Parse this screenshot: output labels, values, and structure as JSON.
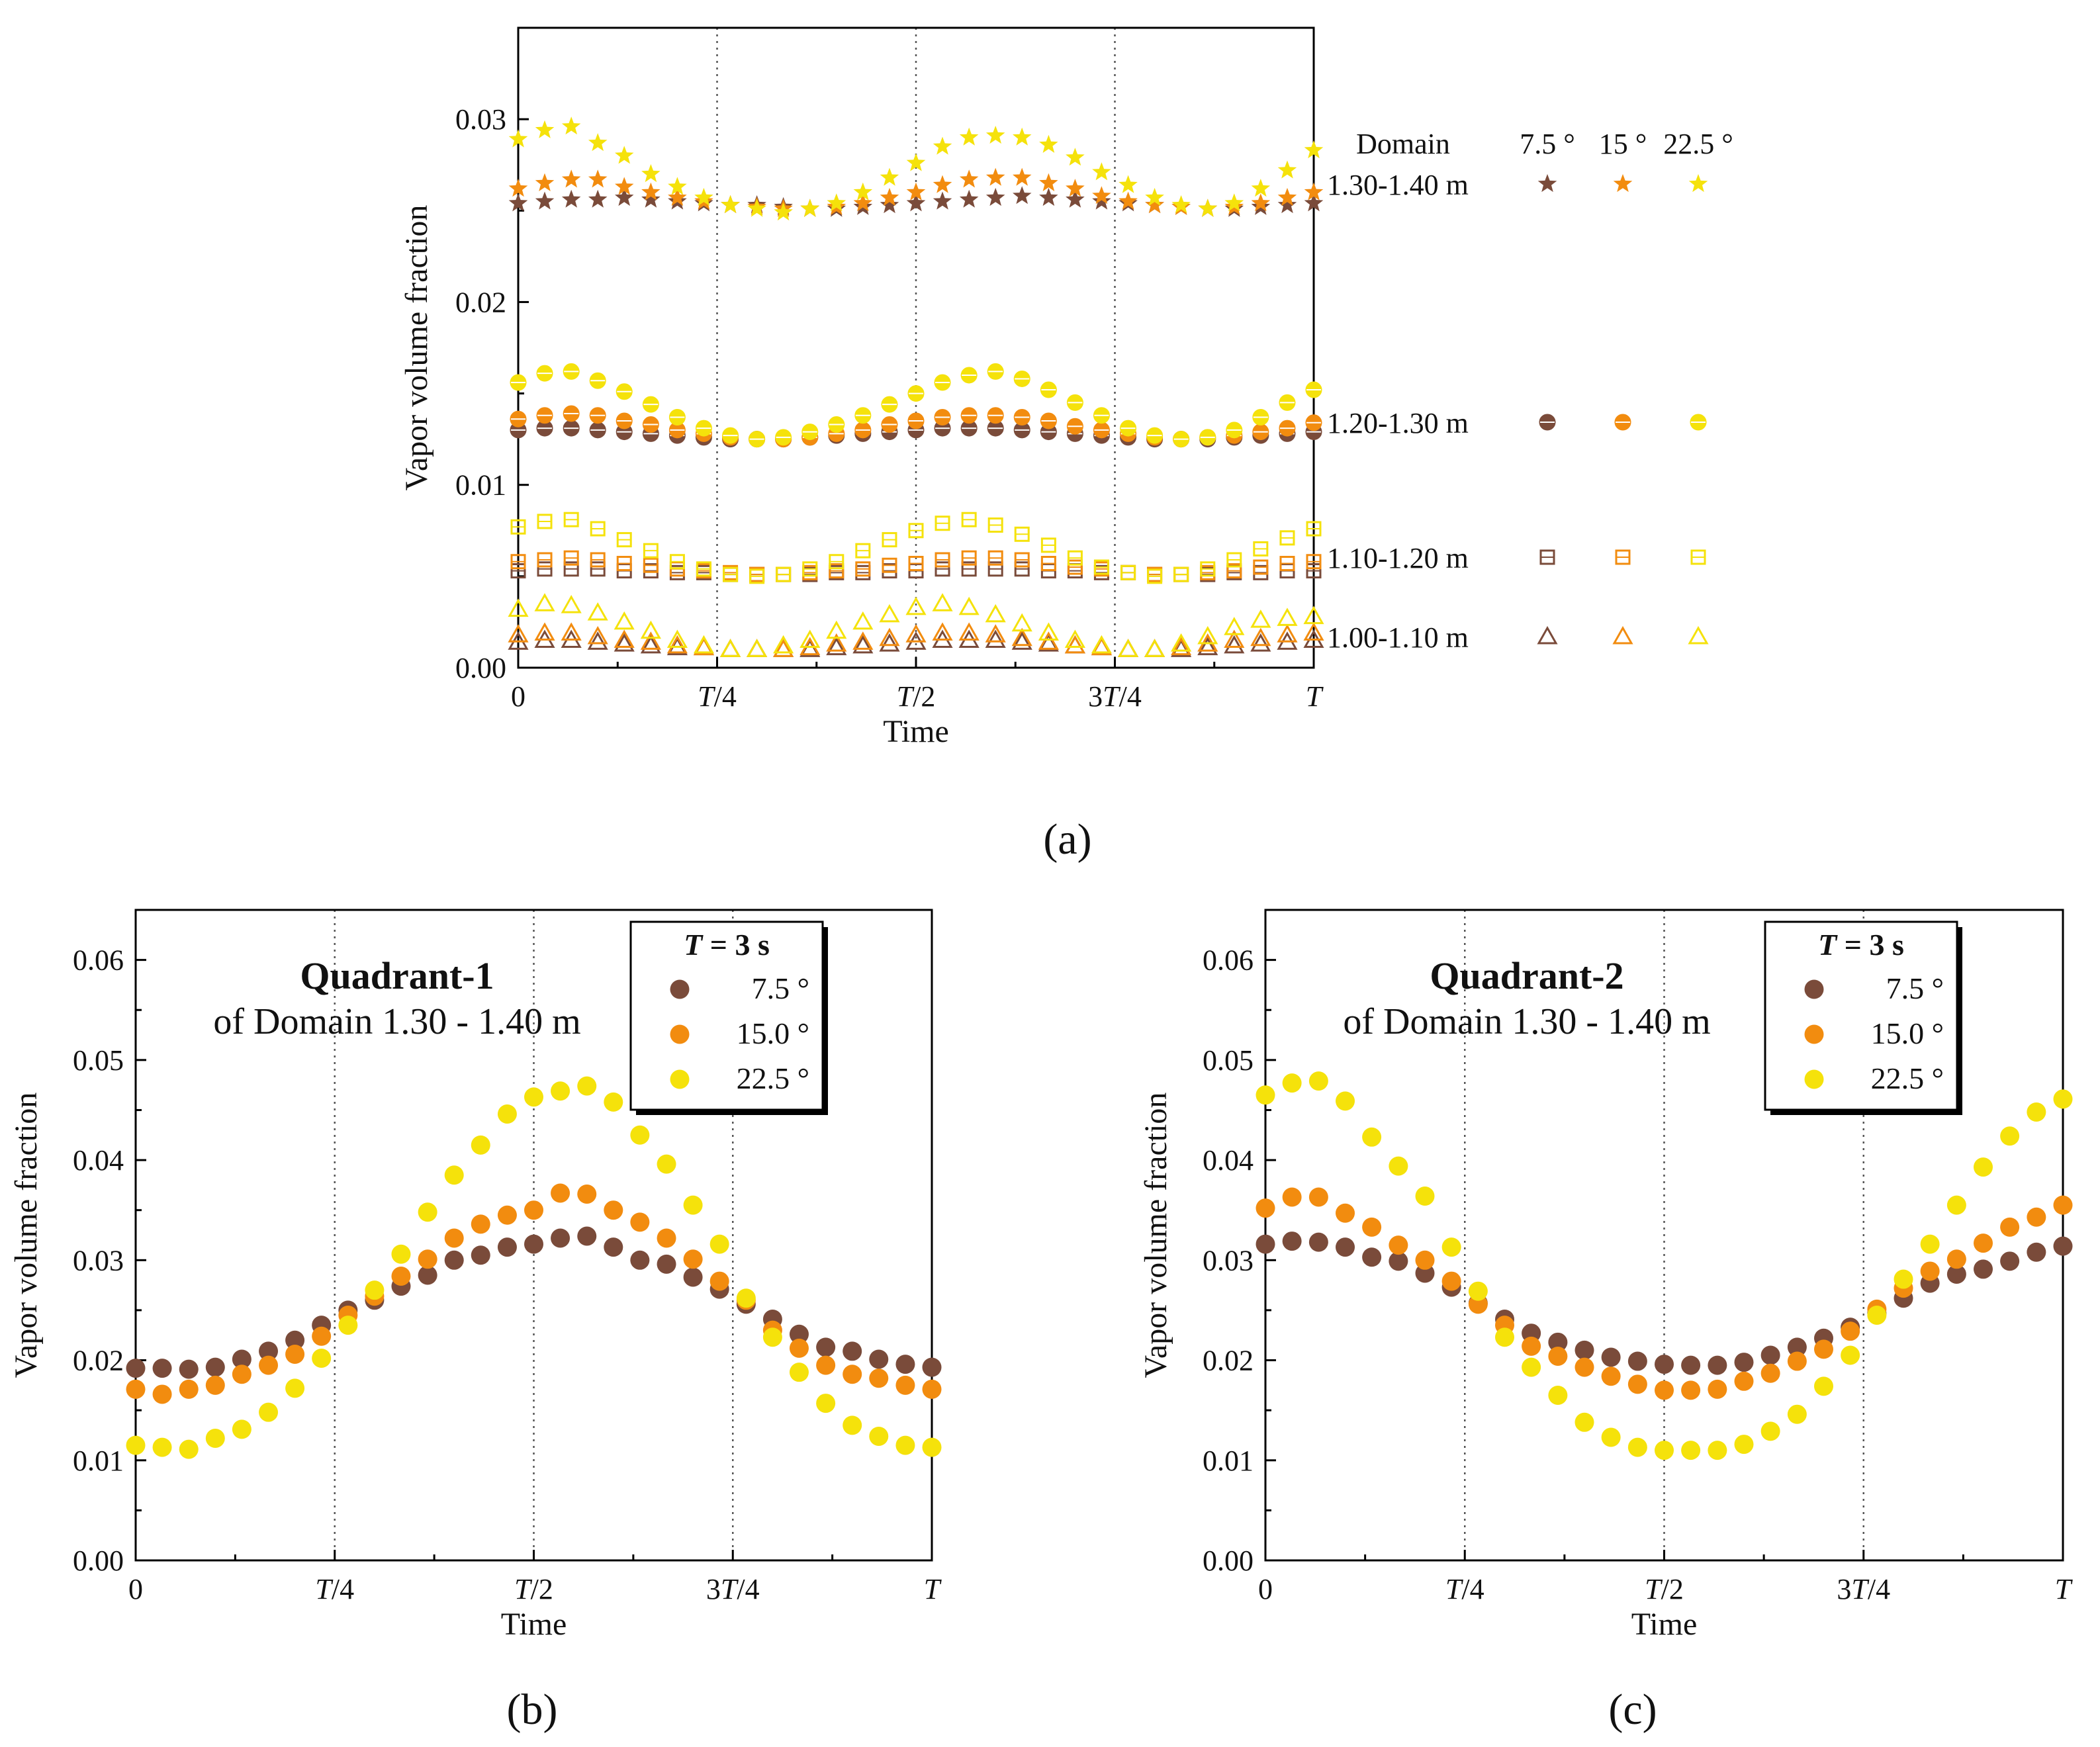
{
  "colors": {
    "brown": "#7a4b3a",
    "orange": "#f28c0f",
    "yellow": "#f5e20b",
    "axis": "#000000",
    "grid": "#555555"
  },
  "time_ticks": [
    "0",
    "T/4",
    "T/2",
    "3T/4",
    "T"
  ],
  "chart_data": [
    {
      "panel": "(a)",
      "type": "scatter",
      "xlabel": "Time",
      "ylabel": "Vapor volume fraction",
      "xlim": [
        0,
        1
      ],
      "ylim": [
        0,
        0.035
      ],
      "yticks": [
        "0.00",
        "0.01",
        "0.02",
        "0.03"
      ],
      "legend": {
        "domain_header": "Domain",
        "angle_headers": [
          "7.5 °",
          "15 °",
          "22.5 °"
        ],
        "rows": [
          {
            "domain": "1.30-1.40 m",
            "marker": "star"
          },
          {
            "domain": "1.20-1.30 m",
            "marker": "circle"
          },
          {
            "domain": "1.10-1.20 m",
            "marker": "square"
          },
          {
            "domain": "1.00-1.10 m",
            "marker": "triangle"
          }
        ]
      },
      "x": [
        0,
        0.0333,
        0.0667,
        0.1,
        0.1333,
        0.1667,
        0.2,
        0.2333,
        0.2667,
        0.3,
        0.3333,
        0.3667,
        0.4,
        0.4333,
        0.4667,
        0.5,
        0.5333,
        0.5667,
        0.6,
        0.6333,
        0.6667,
        0.7,
        0.7333,
        0.7667,
        0.8,
        0.8333,
        0.8667,
        0.9,
        0.9333,
        0.9667,
        1.0
      ],
      "series": [
        {
          "domain": "1.30-1.40 m",
          "angle": "7.5",
          "marker": "star",
          "color": "brown",
          "values": [
            0.0254,
            0.0255,
            0.0256,
            0.0256,
            0.0257,
            0.0256,
            0.0255,
            0.0254,
            0.0253,
            0.0253,
            0.0252,
            0.0251,
            0.0251,
            0.0252,
            0.0253,
            0.0254,
            0.0255,
            0.0256,
            0.0257,
            0.0258,
            0.0257,
            0.0256,
            0.0255,
            0.0254,
            0.0253,
            0.0252,
            0.0251,
            0.0251,
            0.0252,
            0.0253,
            0.0254
          ]
        },
        {
          "domain": "1.30-1.40 m",
          "angle": "15",
          "marker": "star",
          "color": "orange",
          "values": [
            0.0262,
            0.0265,
            0.0267,
            0.0267,
            0.0263,
            0.026,
            0.0257,
            0.0255,
            0.0253,
            0.0252,
            0.0251,
            0.0251,
            0.0252,
            0.0254,
            0.0257,
            0.026,
            0.0264,
            0.0267,
            0.0268,
            0.0268,
            0.0265,
            0.0262,
            0.0258,
            0.0255,
            0.0253,
            0.0252,
            0.0251,
            0.0252,
            0.0254,
            0.0257,
            0.026
          ]
        },
        {
          "domain": "1.30-1.40 m",
          "angle": "22.5",
          "marker": "star",
          "color": "yellow",
          "values": [
            0.0289,
            0.0294,
            0.0296,
            0.0287,
            0.028,
            0.027,
            0.0263,
            0.0257,
            0.0253,
            0.0251,
            0.0249,
            0.0251,
            0.0254,
            0.026,
            0.0268,
            0.0276,
            0.0285,
            0.029,
            0.0291,
            0.029,
            0.0286,
            0.0279,
            0.0271,
            0.0264,
            0.0257,
            0.0253,
            0.0251,
            0.0254,
            0.0262,
            0.0272,
            0.0283
          ]
        },
        {
          "domain": "1.20-1.30 m",
          "angle": "7.5",
          "marker": "circle",
          "color": "brown",
          "values": [
            0.013,
            0.0131,
            0.0131,
            0.013,
            0.0129,
            0.0128,
            0.0127,
            0.0126,
            0.0125,
            0.0125,
            0.0125,
            0.0126,
            0.0127,
            0.0128,
            0.0129,
            0.013,
            0.0131,
            0.0131,
            0.0131,
            0.013,
            0.0129,
            0.0128,
            0.0127,
            0.0126,
            0.0125,
            0.0125,
            0.0125,
            0.0126,
            0.0127,
            0.0128,
            0.0129
          ]
        },
        {
          "domain": "1.20-1.30 m",
          "angle": "15",
          "marker": "circle",
          "color": "orange",
          "values": [
            0.0136,
            0.0138,
            0.0139,
            0.0138,
            0.0135,
            0.0133,
            0.013,
            0.0128,
            0.0126,
            0.0125,
            0.0125,
            0.0126,
            0.0128,
            0.013,
            0.0133,
            0.0135,
            0.0137,
            0.0138,
            0.0138,
            0.0137,
            0.0135,
            0.0132,
            0.013,
            0.0128,
            0.0126,
            0.0125,
            0.0126,
            0.0127,
            0.0129,
            0.0131,
            0.0134
          ]
        },
        {
          "domain": "1.20-1.30 m",
          "angle": "22.5",
          "marker": "circle",
          "color": "yellow",
          "values": [
            0.0156,
            0.0161,
            0.0162,
            0.0157,
            0.0151,
            0.0144,
            0.0137,
            0.0131,
            0.0127,
            0.0125,
            0.0126,
            0.0129,
            0.0133,
            0.0138,
            0.0144,
            0.015,
            0.0156,
            0.016,
            0.0162,
            0.0158,
            0.0152,
            0.0145,
            0.0138,
            0.0131,
            0.0127,
            0.0125,
            0.0126,
            0.013,
            0.0137,
            0.0145,
            0.0152
          ]
        },
        {
          "domain": "1.10-1.20 m",
          "angle": "7.5",
          "marker": "square",
          "color": "brown",
          "values": [
            0.0053,
            0.0054,
            0.0054,
            0.0054,
            0.0053,
            0.0053,
            0.0052,
            0.0052,
            0.0051,
            0.0051,
            0.0051,
            0.0051,
            0.0052,
            0.0052,
            0.0053,
            0.0053,
            0.0054,
            0.0054,
            0.0054,
            0.0054,
            0.0053,
            0.0053,
            0.0052,
            0.0052,
            0.0051,
            0.0051,
            0.0051,
            0.0052,
            0.0052,
            0.0053,
            0.0053
          ]
        },
        {
          "domain": "1.10-1.20 m",
          "angle": "15",
          "marker": "square",
          "color": "orange",
          "values": [
            0.0058,
            0.0059,
            0.006,
            0.0059,
            0.0057,
            0.0056,
            0.0054,
            0.0053,
            0.0052,
            0.0051,
            0.0051,
            0.0052,
            0.0053,
            0.0054,
            0.0056,
            0.0057,
            0.0059,
            0.006,
            0.006,
            0.0059,
            0.0057,
            0.0055,
            0.0054,
            0.0052,
            0.0051,
            0.0051,
            0.0052,
            0.0053,
            0.0055,
            0.0057,
            0.0058
          ]
        },
        {
          "domain": "1.10-1.20 m",
          "angle": "22.5",
          "marker": "square",
          "color": "yellow",
          "values": [
            0.0077,
            0.008,
            0.0081,
            0.0076,
            0.007,
            0.0064,
            0.0058,
            0.0054,
            0.0051,
            0.005,
            0.0051,
            0.0054,
            0.0058,
            0.0064,
            0.007,
            0.0075,
            0.0079,
            0.0081,
            0.0078,
            0.0073,
            0.0067,
            0.006,
            0.0055,
            0.0052,
            0.005,
            0.0051,
            0.0054,
            0.0059,
            0.0065,
            0.0071,
            0.0076
          ]
        },
        {
          "domain": "1.00-1.10 m",
          "angle": "7.5",
          "marker": "triangle",
          "color": "brown",
          "values": [
            0.0014,
            0.0015,
            0.0015,
            0.0014,
            0.0013,
            0.0012,
            0.0011,
            0.0011,
            0.001,
            0.001,
            0.001,
            0.001,
            0.0011,
            0.0012,
            0.0013,
            0.0014,
            0.0015,
            0.0015,
            0.0015,
            0.0014,
            0.0013,
            0.0012,
            0.0011,
            0.001,
            0.001,
            0.001,
            0.0011,
            0.0012,
            0.0013,
            0.0014,
            0.0015
          ]
        },
        {
          "domain": "1.00-1.10 m",
          "angle": "15",
          "marker": "triangle",
          "color": "orange",
          "values": [
            0.0018,
            0.0019,
            0.0019,
            0.0017,
            0.0015,
            0.0014,
            0.0012,
            0.0011,
            0.001,
            0.001,
            0.001,
            0.0011,
            0.0013,
            0.0014,
            0.0016,
            0.0018,
            0.0019,
            0.0019,
            0.0018,
            0.0016,
            0.0014,
            0.0012,
            0.0011,
            0.001,
            0.001,
            0.0011,
            0.0013,
            0.0015,
            0.0016,
            0.0018,
            0.0019
          ]
        },
        {
          "domain": "1.00-1.10 m",
          "angle": "22.5",
          "marker": "triangle",
          "color": "yellow",
          "values": [
            0.0032,
            0.0035,
            0.0034,
            0.003,
            0.0025,
            0.002,
            0.0015,
            0.0012,
            0.001,
            0.001,
            0.0012,
            0.0015,
            0.002,
            0.0025,
            0.0029,
            0.0033,
            0.0035,
            0.0033,
            0.0029,
            0.0024,
            0.0019,
            0.0015,
            0.0012,
            0.001,
            0.001,
            0.0013,
            0.0017,
            0.0022,
            0.0026,
            0.0027,
            0.0028
          ]
        }
      ]
    },
    {
      "panel": "(b)",
      "type": "scatter",
      "title_bold": "Quadrant-1",
      "title": "of Domain 1.30 - 1.40 m",
      "xlabel": "Time",
      "ylabel": "Vapor volume fraction",
      "xlim": [
        0,
        1
      ],
      "ylim": [
        0,
        0.065
      ],
      "yticks": [
        "0.00",
        "0.01",
        "0.02",
        "0.03",
        "0.04",
        "0.05",
        "0.06"
      ],
      "legend": {
        "title": "T = 3 s",
        "entries": [
          "7.5 °",
          "15.0 °",
          "22.5 °"
        ]
      },
      "x": [
        0,
        0.0333,
        0.0667,
        0.1,
        0.1333,
        0.1667,
        0.2,
        0.2333,
        0.2667,
        0.3,
        0.3333,
        0.3667,
        0.4,
        0.4333,
        0.4667,
        0.5,
        0.5333,
        0.5667,
        0.6,
        0.6333,
        0.6667,
        0.7,
        0.7333,
        0.7667,
        0.8,
        0.8333,
        0.8667,
        0.9,
        0.9333,
        0.9667,
        1.0
      ],
      "series": [
        {
          "name": "7.5 °",
          "color": "brown",
          "values": [
            0.0192,
            0.0192,
            0.0191,
            0.0193,
            0.0201,
            0.0209,
            0.022,
            0.0235,
            0.025,
            0.026,
            0.0274,
            0.0285,
            0.03,
            0.0305,
            0.0313,
            0.0316,
            0.0322,
            0.0324,
            0.0313,
            0.03,
            0.0296,
            0.0283,
            0.0271,
            0.0256,
            0.0241,
            0.0226,
            0.0213,
            0.0209,
            0.0201,
            0.0196,
            0.0193
          ]
        },
        {
          "name": "15.0 °",
          "color": "orange",
          "values": [
            0.0171,
            0.0166,
            0.0171,
            0.0175,
            0.0186,
            0.0195,
            0.0206,
            0.0224,
            0.0245,
            0.0264,
            0.0284,
            0.0301,
            0.0322,
            0.0336,
            0.0345,
            0.035,
            0.0367,
            0.0366,
            0.035,
            0.0338,
            0.0322,
            0.0301,
            0.0279,
            0.026,
            0.023,
            0.0212,
            0.0195,
            0.0186,
            0.0182,
            0.0175,
            0.0171
          ]
        },
        {
          "name": "22.5 °",
          "color": "yellow",
          "values": [
            0.0115,
            0.0113,
            0.0111,
            0.0122,
            0.0131,
            0.0148,
            0.0172,
            0.0202,
            0.0235,
            0.027,
            0.0306,
            0.0348,
            0.0385,
            0.0415,
            0.0446,
            0.0463,
            0.0469,
            0.0474,
            0.0458,
            0.0425,
            0.0396,
            0.0355,
            0.0316,
            0.0262,
            0.0223,
            0.0188,
            0.0157,
            0.0135,
            0.0124,
            0.0115,
            0.0113
          ]
        }
      ]
    },
    {
      "panel": "(c)",
      "type": "scatter",
      "title_bold": "Quadrant-2",
      "title": "of Domain 1.30 - 1.40 m",
      "xlabel": "Time",
      "ylabel": "Vapor volume fraction",
      "xlim": [
        0,
        1
      ],
      "ylim": [
        0,
        0.065
      ],
      "yticks": [
        "0.00",
        "0.01",
        "0.02",
        "0.03",
        "0.04",
        "0.05",
        "0.06"
      ],
      "legend": {
        "title": "T = 3 s",
        "entries": [
          "7.5 °",
          "15.0 °",
          "22.5 °"
        ]
      },
      "x": [
        0,
        0.0333,
        0.0667,
        0.1,
        0.1333,
        0.1667,
        0.2,
        0.2333,
        0.2667,
        0.3,
        0.3333,
        0.3667,
        0.4,
        0.4333,
        0.4667,
        0.5,
        0.5333,
        0.5667,
        0.6,
        0.6333,
        0.6667,
        0.7,
        0.7333,
        0.7667,
        0.8,
        0.8333,
        0.8667,
        0.9,
        0.9333,
        0.9667,
        1.0
      ],
      "series": [
        {
          "name": "7.5 °",
          "color": "brown",
          "values": [
            0.0316,
            0.0319,
            0.0318,
            0.0313,
            0.0303,
            0.0299,
            0.0287,
            0.0273,
            0.0257,
            0.0241,
            0.0227,
            0.0218,
            0.021,
            0.0203,
            0.0199,
            0.0196,
            0.0195,
            0.0195,
            0.0198,
            0.0205,
            0.0213,
            0.0222,
            0.0233,
            0.0247,
            0.0262,
            0.0277,
            0.0286,
            0.0291,
            0.0299,
            0.0308,
            0.0314
          ]
        },
        {
          "name": "15.0 °",
          "color": "orange",
          "values": [
            0.0352,
            0.0363,
            0.0363,
            0.0347,
            0.0333,
            0.0315,
            0.03,
            0.0279,
            0.0256,
            0.0235,
            0.0214,
            0.0204,
            0.0193,
            0.0184,
            0.0176,
            0.017,
            0.017,
            0.0171,
            0.0179,
            0.0187,
            0.0199,
            0.0211,
            0.0229,
            0.0251,
            0.0272,
            0.0289,
            0.0301,
            0.0317,
            0.0333,
            0.0343,
            0.0355
          ]
        },
        {
          "name": "22.5 °",
          "color": "yellow",
          "values": [
            0.0465,
            0.0477,
            0.0479,
            0.0459,
            0.0423,
            0.0394,
            0.0364,
            0.0313,
            0.0269,
            0.0223,
            0.0193,
            0.0165,
            0.0138,
            0.0123,
            0.0113,
            0.011,
            0.011,
            0.011,
            0.0116,
            0.0129,
            0.0146,
            0.0174,
            0.0205,
            0.0245,
            0.0281,
            0.0316,
            0.0355,
            0.0393,
            0.0424,
            0.0448,
            0.0461
          ]
        }
      ]
    }
  ]
}
